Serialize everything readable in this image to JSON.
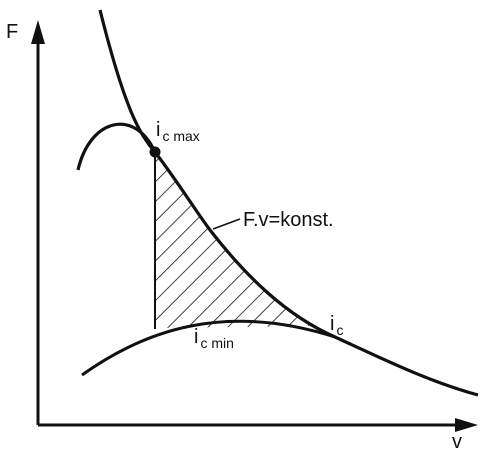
{
  "axes": {
    "y_label": "F",
    "x_label": "v"
  },
  "labels": {
    "ic_max": {
      "main": "i",
      "sub": "c max"
    },
    "hyperbola": "F.v=konst.",
    "ic_min": {
      "main": "i",
      "sub": "c min"
    },
    "ic": {
      "main": "i",
      "sub": "c"
    }
  }
}
